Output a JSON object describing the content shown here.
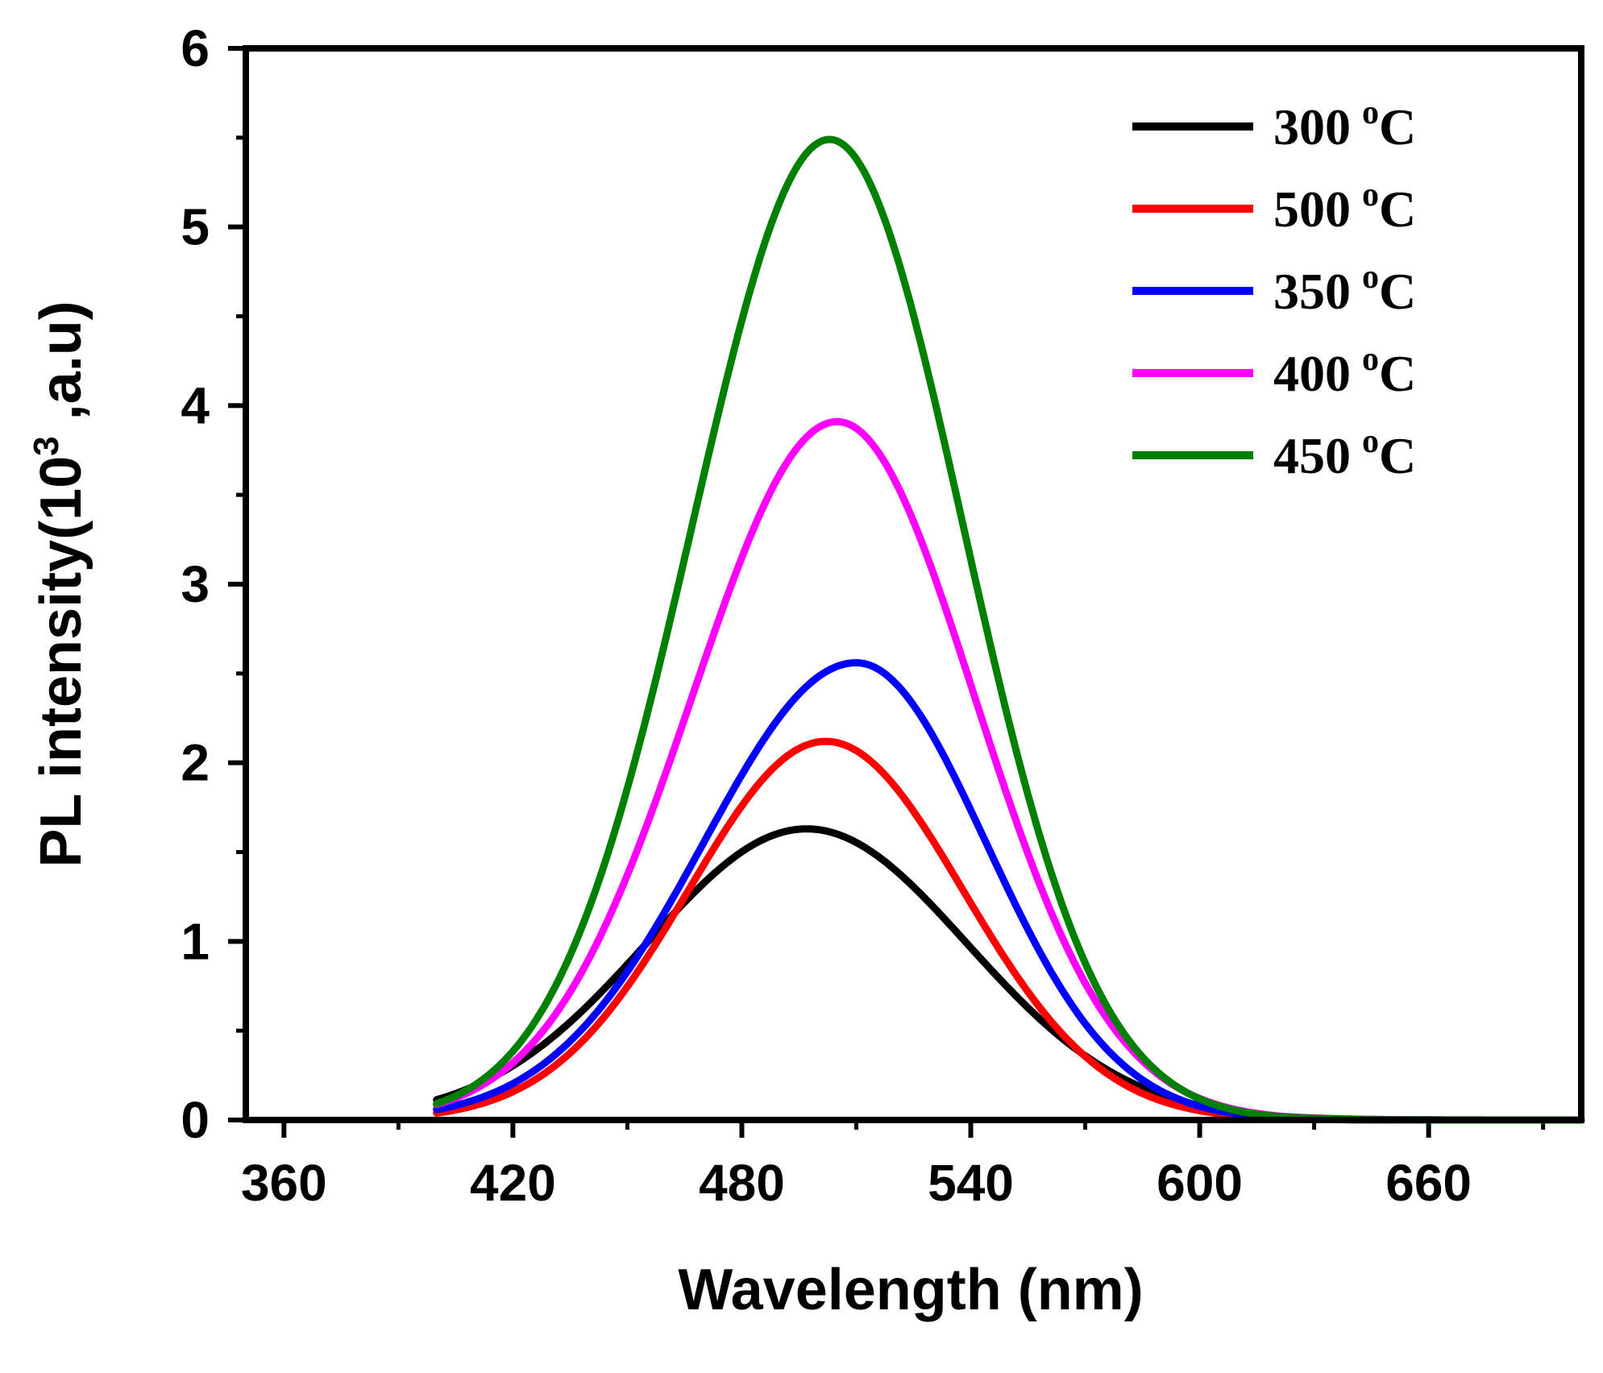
{
  "chart_data": {
    "type": "line",
    "title": "",
    "xlabel": "Wavelength (nm)",
    "ylabel_main": "PL intensity(10",
    "ylabel_sup": "3",
    "ylabel_tail": " ,a.u)",
    "xlim": [
      350,
      700
    ],
    "ylim": [
      0,
      6
    ],
    "xticks": [
      360,
      420,
      480,
      540,
      600,
      660
    ],
    "xtick_labels": [
      "360",
      "420",
      "480",
      "540",
      "600",
      "660"
    ],
    "yticks": [
      0,
      1,
      2,
      3,
      4,
      5,
      6
    ],
    "ytick_labels": [
      "0",
      "1",
      "2",
      "3",
      "4",
      "5",
      "6"
    ],
    "grid": false,
    "legend_position": "top-right",
    "series": [
      {
        "name": "300",
        "unit_sup": "o",
        "unit": "C",
        "color": "#000000",
        "x_start": 400,
        "x_end": 700,
        "peak": 497,
        "amplitude": 1.63,
        "sigma_left": 42,
        "sigma_right": 42
      },
      {
        "name": "500",
        "unit_sup": "o",
        "unit": "C",
        "color": "#ff0000",
        "x_start": 400,
        "x_end": 700,
        "peak": 502,
        "amplitude": 2.12,
        "sigma_left": 36,
        "sigma_right": 36
      },
      {
        "name": "350",
        "unit_sup": "o",
        "unit": "C",
        "color": "#0000ff",
        "x_start": 400,
        "x_end": 700,
        "peak": 510,
        "amplitude": 2.56,
        "sigma_left": 40,
        "sigma_right": 34
      },
      {
        "name": "400",
        "unit_sup": "o",
        "unit": "C",
        "color": "#ff00ff",
        "x_start": 400,
        "x_end": 700,
        "peak": 505,
        "amplitude": 3.91,
        "sigma_left": 38,
        "sigma_right": 36
      },
      {
        "name": "450",
        "unit_sup": "o",
        "unit": "C",
        "color": "#008000",
        "x_start": 400,
        "x_end": 700,
        "peak": 503,
        "amplitude": 5.49,
        "sigma_left": 36,
        "sigma_right": 35
      }
    ]
  }
}
